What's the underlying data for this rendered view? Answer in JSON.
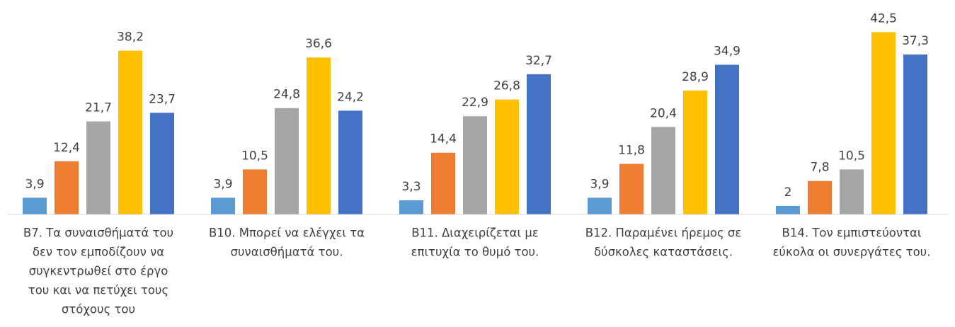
{
  "chart_data": {
    "type": "bar",
    "categories": [
      [
        "B7. Τα συναισθήματά του",
        "δεν τον εμποδίζουν να",
        "συγκεντρωθεί στο έργο",
        "του και να πετύχει τους",
        "στόχους του"
      ],
      [
        "B10. Μπορεί να ελέγχει τα",
        "συναισθήματά του."
      ],
      [
        "B11. Διαχειρίζεται με",
        "επιτυχία το θυμό του."
      ],
      [
        "B12. Παραμένει ήρεμος σε",
        "δύσκολες καταστάσεις."
      ],
      [
        "B14. Τον  εμπιστεύονται",
        "εύκολα οι συνεργάτες του."
      ]
    ],
    "series": [
      {
        "color": "#5b9bd5",
        "values": [
          3.9,
          3.9,
          3.3,
          3.9,
          2
        ],
        "value_labels": [
          "3,9",
          "3,9",
          "3,3",
          "3,9",
          "2"
        ]
      },
      {
        "color": "#ed7d31",
        "values": [
          12.4,
          10.5,
          14.4,
          11.8,
          7.8
        ],
        "value_labels": [
          "12,4",
          "10,5",
          "14,4",
          "11,8",
          "7,8"
        ]
      },
      {
        "color": "#a5a5a5",
        "values": [
          21.7,
          24.8,
          22.9,
          20.4,
          10.5
        ],
        "value_labels": [
          "21,7",
          "24,8",
          "22,9",
          "20,4",
          "10,5"
        ]
      },
      {
        "color": "#ffc000",
        "values": [
          38.2,
          36.6,
          26.8,
          28.9,
          42.5
        ],
        "value_labels": [
          "38,2",
          "36,6",
          "26,8",
          "28,9",
          "42,5"
        ]
      },
      {
        "color": "#4472c4",
        "values": [
          23.7,
          24.2,
          32.7,
          34.9,
          37.3
        ],
        "value_labels": [
          "23,7",
          "24,2",
          "32,7",
          "34,9",
          "37,3"
        ]
      }
    ],
    "ylim": [
      0,
      50
    ]
  }
}
